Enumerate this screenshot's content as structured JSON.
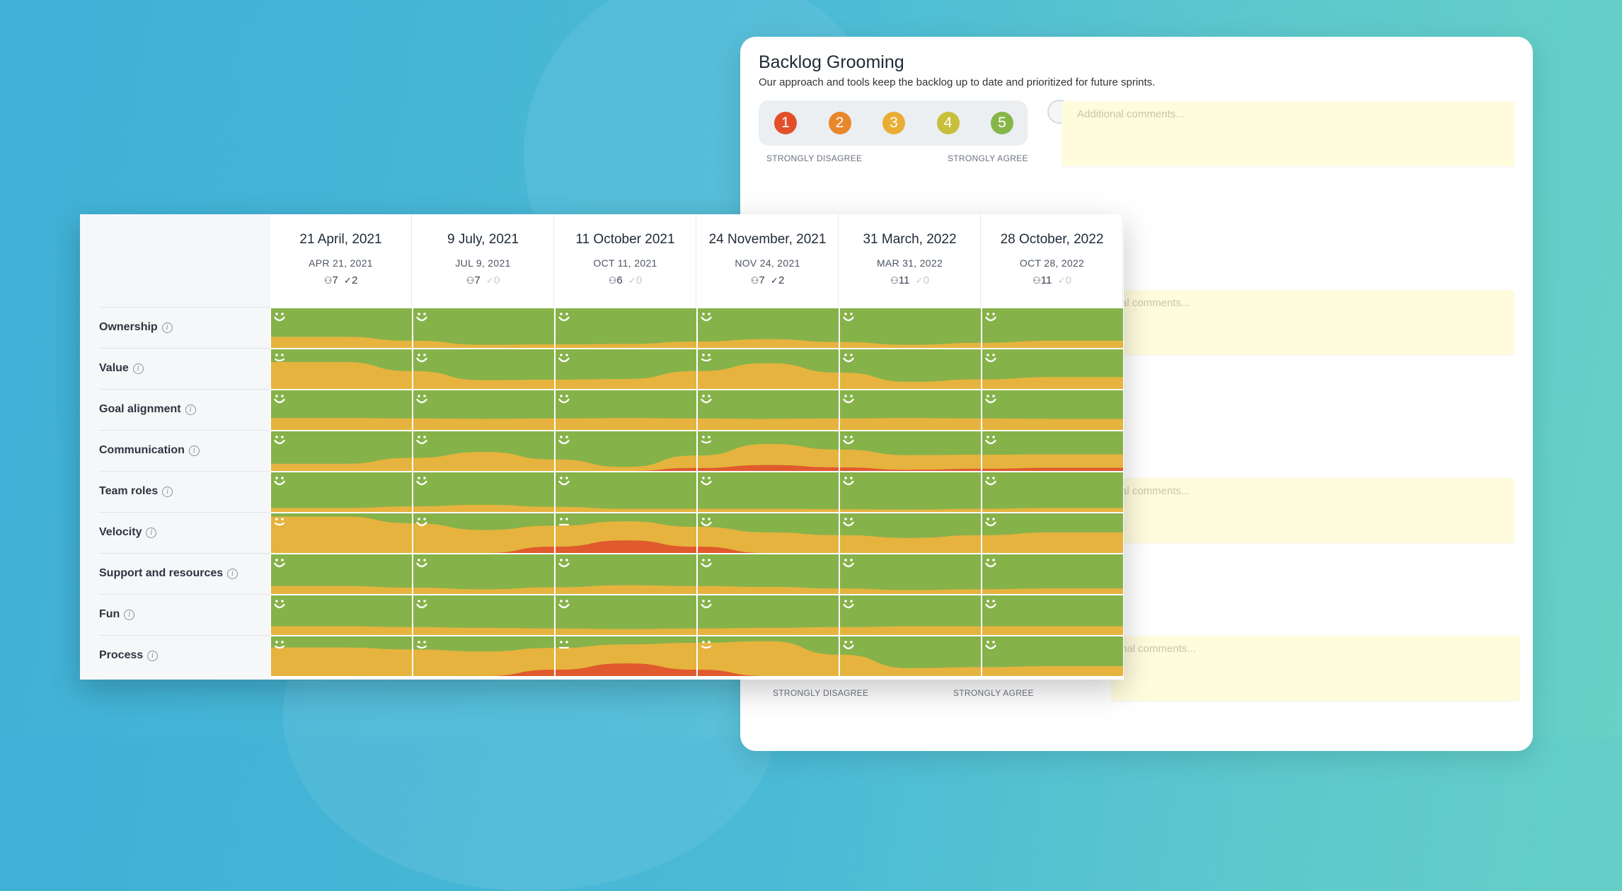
{
  "backlog_panel": {
    "title": "Backlog Grooming",
    "subtitle": "Our approach and tools keep the backlog up to date and prioritized for future sprints.",
    "scale": [
      {
        "label": "1",
        "color": "#e2502b"
      },
      {
        "label": "2",
        "color": "#e8882b"
      },
      {
        "label": "3",
        "color": "#e8ad32"
      },
      {
        "label": "4",
        "color": "#c8bf3c"
      },
      {
        "label": "5",
        "color": "#86b64a"
      }
    ],
    "strongly_disagree": "STRONGLY DISAGREE",
    "strongly_agree": "STRONGLY AGREE",
    "comment_placeholder": "Additional comments...",
    "partial_comment_1": "al comments...",
    "partial_comment_2": "al comments...",
    "partial_comment_3": "nal comments..."
  },
  "colors": {
    "green": "#86b24a",
    "yellow": "#e6b33e",
    "red": "#e05a2d"
  },
  "columns": [
    {
      "title": "21 April, 2021",
      "date": "APR 21, 2021",
      "participants": "7",
      "actions": "2",
      "actions_muted": false
    },
    {
      "title": "9 July, 2021",
      "date": "JUL 9, 2021",
      "participants": "7",
      "actions": "0",
      "actions_muted": true
    },
    {
      "title": "11 October 2021",
      "date": "OCT 11, 2021",
      "participants": "6",
      "actions": "0",
      "actions_muted": true
    },
    {
      "title": "24 November, 2021",
      "date": "NOV 24, 2021",
      "participants": "7",
      "actions": "2",
      "actions_muted": false
    },
    {
      "title": "31 March, 2022",
      "date": "MAR 31, 2022",
      "participants": "11",
      "actions": "0",
      "actions_muted": true
    },
    {
      "title": "28 October, 2022",
      "date": "OCT 28, 2022",
      "participants": "11",
      "actions": "0",
      "actions_muted": true
    }
  ],
  "rows": [
    {
      "label": "Ownership",
      "cells": [
        {
          "y": 0.28,
          "r": 0,
          "face": "happy"
        },
        {
          "y": 0.08,
          "r": 0,
          "face": "happy"
        },
        {
          "y": 0.1,
          "r": 0,
          "face": "happy"
        },
        {
          "y": 0.22,
          "r": 0,
          "face": "happy"
        },
        {
          "y": 0.08,
          "r": 0,
          "face": "happy"
        },
        {
          "y": 0.18,
          "r": 0,
          "face": "happy"
        }
      ]
    },
    {
      "label": "Value",
      "cells": [
        {
          "y": 0.68,
          "r": 0,
          "face": "neutral-happy"
        },
        {
          "y": 0.22,
          "r": 0,
          "face": "happy"
        },
        {
          "y": 0.25,
          "r": 0,
          "face": "happy"
        },
        {
          "y": 0.65,
          "r": 0,
          "face": "neutral-happy"
        },
        {
          "y": 0.18,
          "r": 0,
          "face": "happy"
        },
        {
          "y": 0.3,
          "r": 0,
          "face": "happy"
        }
      ]
    },
    {
      "label": "Goal alignment",
      "cells": [
        {
          "y": 0.3,
          "r": 0,
          "face": "happy"
        },
        {
          "y": 0.28,
          "r": 0,
          "face": "happy"
        },
        {
          "y": 0.3,
          "r": 0,
          "face": "happy"
        },
        {
          "y": 0.28,
          "r": 0,
          "face": "happy"
        },
        {
          "y": 0.3,
          "r": 0,
          "face": "happy"
        },
        {
          "y": 0.28,
          "r": 0,
          "face": "happy"
        }
      ]
    },
    {
      "label": "Communication",
      "cells": [
        {
          "y": 0.18,
          "r": 0,
          "face": "happy"
        },
        {
          "y": 0.48,
          "r": 0,
          "face": "happy"
        },
        {
          "y": 0.1,
          "r": 0,
          "face": "happy"
        },
        {
          "y": 0.68,
          "r": 0.15,
          "face": "neutral-happy"
        },
        {
          "y": 0.4,
          "r": 0.03,
          "face": "happy"
        },
        {
          "y": 0.42,
          "r": 0.08,
          "face": "happy"
        }
      ]
    },
    {
      "label": "Team roles",
      "cells": [
        {
          "y": 0.1,
          "r": 0,
          "face": "happy"
        },
        {
          "y": 0.18,
          "r": 0,
          "face": "happy"
        },
        {
          "y": 0.08,
          "r": 0,
          "face": "happy"
        },
        {
          "y": 0.08,
          "r": 0,
          "face": "happy"
        },
        {
          "y": 0.06,
          "r": 0,
          "face": "happy"
        },
        {
          "y": 0.1,
          "r": 0,
          "face": "happy"
        }
      ]
    },
    {
      "label": "Velocity",
      "cells": [
        {
          "y": 0.92,
          "r": 0,
          "face": "neutral-happy"
        },
        {
          "y": 0.58,
          "r": 0,
          "face": "happy"
        },
        {
          "y": 0.8,
          "r": 0.32,
          "face": "neutral"
        },
        {
          "y": 0.52,
          "r": 0,
          "face": "happy"
        },
        {
          "y": 0.38,
          "r": 0,
          "face": "happy"
        },
        {
          "y": 0.52,
          "r": 0,
          "face": "happy"
        }
      ]
    },
    {
      "label": "Support and resources",
      "cells": [
        {
          "y": 0.2,
          "r": 0,
          "face": "happy"
        },
        {
          "y": 0.12,
          "r": 0,
          "face": "happy"
        },
        {
          "y": 0.22,
          "r": 0,
          "face": "happy"
        },
        {
          "y": 0.18,
          "r": 0,
          "face": "happy"
        },
        {
          "y": 0.1,
          "r": 0,
          "face": "happy"
        },
        {
          "y": 0.14,
          "r": 0,
          "face": "happy"
        }
      ]
    },
    {
      "label": "Fun",
      "cells": [
        {
          "y": 0.22,
          "r": 0,
          "face": "happy"
        },
        {
          "y": 0.18,
          "r": 0,
          "face": "happy"
        },
        {
          "y": 0.15,
          "r": 0,
          "face": "happy"
        },
        {
          "y": 0.18,
          "r": 0,
          "face": "happy"
        },
        {
          "y": 0.22,
          "r": 0,
          "face": "happy"
        },
        {
          "y": 0.22,
          "r": 0,
          "face": "happy"
        }
      ]
    },
    {
      "label": "Process",
      "cells": [
        {
          "y": 0.72,
          "r": 0,
          "face": "neutral-happy"
        },
        {
          "y": 0.62,
          "r": 0,
          "face": "neutral-happy"
        },
        {
          "y": 0.8,
          "r": 0.32,
          "face": "neutral"
        },
        {
          "y": 0.88,
          "r": 0,
          "face": "neutral-happy"
        },
        {
          "y": 0.2,
          "r": 0,
          "face": "happy"
        },
        {
          "y": 0.25,
          "r": 0,
          "face": "happy"
        }
      ]
    }
  ]
}
